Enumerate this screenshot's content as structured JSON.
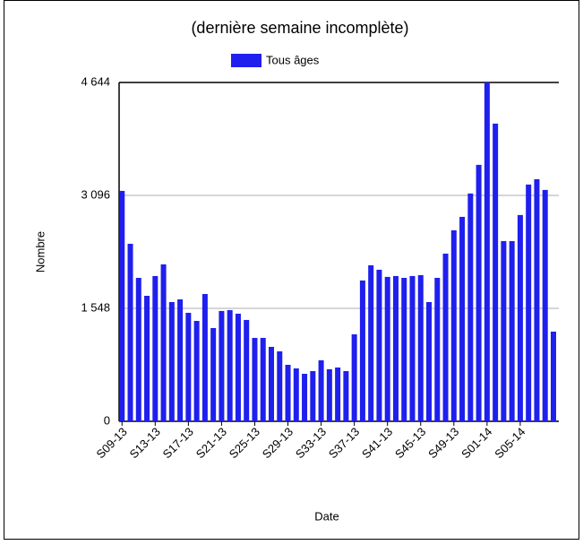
{
  "chart_data": {
    "type": "bar",
    "title": "(dernière semaine incomplète)",
    "x_label": "Date",
    "y_label": "Nombre",
    "categories": [
      "S09-13",
      null,
      null,
      null,
      "S13-13",
      null,
      null,
      null,
      "S17-13",
      null,
      null,
      null,
      "S21-13",
      null,
      null,
      null,
      "S25-13",
      null,
      null,
      null,
      "S29-13",
      null,
      null,
      null,
      "S33-13",
      null,
      null,
      null,
      "S37-13",
      null,
      null,
      null,
      "S41-13",
      null,
      null,
      null,
      "S45-13",
      null,
      null,
      null,
      "S49-13",
      null,
      null,
      null,
      "S01-14",
      null,
      null,
      null,
      "S05-14",
      null,
      null,
      null,
      null
    ],
    "series": [
      {
        "name": "Tous âges",
        "color": "#1f1fee",
        "values": [
          3158,
          2433,
          1966,
          1720,
          1991,
          2151,
          1634,
          1671,
          1487,
          1376,
          1745,
          1278,
          1512,
          1524,
          1475,
          1389,
          1143,
          1143,
          1020,
          959,
          774,
          725,
          651,
          688,
          836,
          713,
          737,
          688,
          1192,
          1930,
          2138,
          2077,
          1979,
          1991,
          1966,
          1991,
          2003,
          1634,
          1966,
          2298,
          2618,
          2802,
          3122,
          3515,
          4644,
          4080,
          2470,
          2470,
          2827,
          3245,
          3318,
          3171,
          1229
        ]
      }
    ],
    "ylim": [
      0,
      4644
    ],
    "yticks": [
      0,
      {
        "value": 1548,
        "label": "1 548"
      },
      {
        "value": 3096,
        "label": "3 096"
      },
      {
        "value": 4644,
        "label": "4 644"
      }
    ],
    "grid": true,
    "legend": "top"
  }
}
